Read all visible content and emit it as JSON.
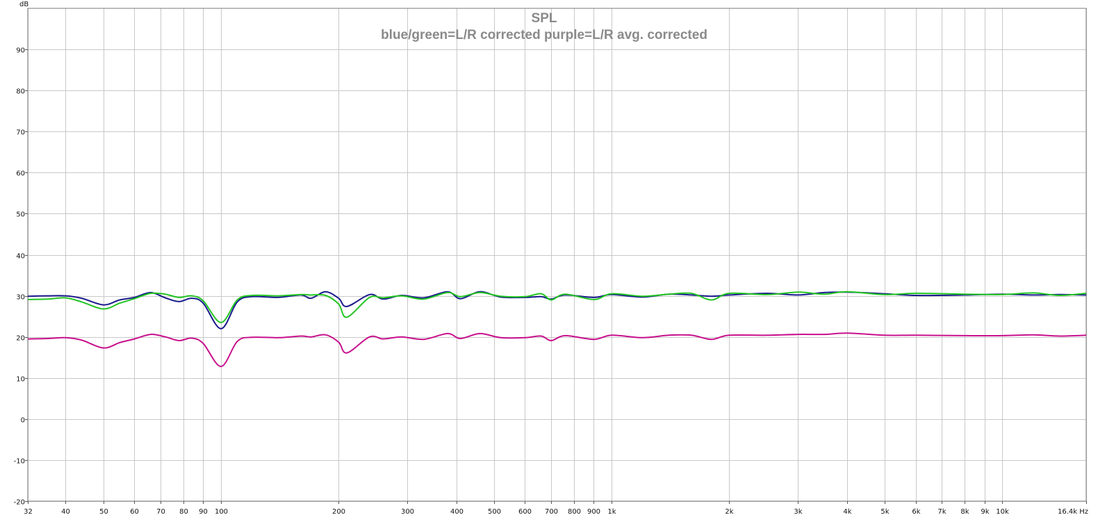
{
  "chart_data": {
    "type": "line",
    "title": "SPL",
    "subtitle": "blue/green=L/R corrected  purple=L/R avg. corrected",
    "ylabel": "dB",
    "xunit": "Hz",
    "xscale": "log",
    "xlim": [
      32,
      16400
    ],
    "ylim": [
      -20,
      100
    ],
    "grid": true,
    "x_ticks": [
      {
        "v": 32,
        "label": "32"
      },
      {
        "v": 40,
        "label": "40"
      },
      {
        "v": 50,
        "label": "50"
      },
      {
        "v": 60,
        "label": "60"
      },
      {
        "v": 70,
        "label": "70"
      },
      {
        "v": 80,
        "label": "80"
      },
      {
        "v": 90,
        "label": "90"
      },
      {
        "v": 100,
        "label": "100"
      },
      {
        "v": 200,
        "label": "200"
      },
      {
        "v": 300,
        "label": "300"
      },
      {
        "v": 400,
        "label": "400"
      },
      {
        "v": 500,
        "label": "500"
      },
      {
        "v": 600,
        "label": "600"
      },
      {
        "v": 700,
        "label": "700"
      },
      {
        "v": 800,
        "label": "800"
      },
      {
        "v": 900,
        "label": "900"
      },
      {
        "v": 1000,
        "label": "1k"
      },
      {
        "v": 2000,
        "label": "2k"
      },
      {
        "v": 3000,
        "label": "3k"
      },
      {
        "v": 4000,
        "label": "4k"
      },
      {
        "v": 5000,
        "label": "5k"
      },
      {
        "v": 6000,
        "label": "6k"
      },
      {
        "v": 7000,
        "label": "7k"
      },
      {
        "v": 8000,
        "label": "8k"
      },
      {
        "v": 9000,
        "label": "9k"
      },
      {
        "v": 10000,
        "label": "10k"
      },
      {
        "v": 16400,
        "label": "16.4k Hz"
      }
    ],
    "y_ticks": [
      {
        "v": 90,
        "label": "90"
      },
      {
        "v": 80,
        "label": "80"
      },
      {
        "v": 70,
        "label": "70"
      },
      {
        "v": 60,
        "label": "60"
      },
      {
        "v": 50,
        "label": "50"
      },
      {
        "v": 40,
        "label": "40"
      },
      {
        "v": 30,
        "label": "30"
      },
      {
        "v": 20,
        "label": "20"
      },
      {
        "v": 10,
        "label": "10"
      },
      {
        "v": 0,
        "label": "0"
      },
      {
        "v": -10,
        "label": "-10"
      },
      {
        "v": -20,
        "label": "-20"
      }
    ],
    "series": [
      {
        "color": "#1a1a8c",
        "x": [
          32,
          36,
          40,
          44,
          50,
          55,
          60,
          66,
          72,
          78,
          84,
          90,
          100,
          110,
          120,
          140,
          160,
          170,
          185,
          200,
          210,
          240,
          260,
          290,
          330,
          380,
          410,
          460,
          520,
          600,
          660,
          700,
          760,
          900,
          1000,
          1200,
          1400,
          1600,
          1800,
          2000,
          2500,
          3000,
          3500,
          4000,
          5000,
          6000,
          8000,
          10000,
          12000,
          14000,
          16400
        ],
        "y": [
          29.9,
          30.0,
          30.0,
          29.4,
          27.8,
          29.0,
          29.6,
          30.8,
          29.5,
          28.6,
          29.4,
          28.2,
          22.0,
          28.5,
          29.8,
          29.6,
          30.2,
          29.4,
          31.0,
          29.4,
          27.4,
          30.3,
          29.2,
          30.1,
          29.5,
          31.0,
          29.3,
          31.0,
          29.7,
          29.6,
          29.8,
          29.2,
          30.2,
          29.6,
          30.3,
          29.7,
          30.4,
          30.2,
          29.9,
          30.2,
          30.6,
          30.2,
          30.8,
          30.9,
          30.5,
          30.1,
          30.2,
          30.4,
          30.2,
          30.3,
          30.2
        ]
      },
      {
        "color": "#22c422",
        "x": [
          32,
          36,
          40,
          44,
          50,
          55,
          60,
          66,
          72,
          78,
          84,
          90,
          100,
          110,
          120,
          140,
          160,
          170,
          185,
          200,
          210,
          240,
          260,
          290,
          330,
          380,
          410,
          460,
          520,
          600,
          660,
          700,
          760,
          900,
          1000,
          1200,
          1400,
          1600,
          1800,
          2000,
          2500,
          3000,
          3500,
          4000,
          5000,
          6000,
          8000,
          10000,
          12000,
          14000,
          16400
        ],
        "y": [
          29.1,
          29.2,
          29.5,
          28.5,
          26.8,
          28.2,
          29.3,
          30.6,
          30.4,
          29.6,
          30.0,
          28.8,
          23.5,
          29.0,
          30.1,
          30.0,
          30.3,
          30.2,
          30.1,
          28.0,
          24.8,
          29.6,
          29.5,
          30.0,
          29.2,
          30.8,
          29.8,
          30.8,
          29.9,
          29.8,
          30.5,
          29.0,
          30.4,
          29.1,
          30.5,
          29.9,
          30.4,
          30.6,
          29.0,
          30.6,
          30.3,
          30.9,
          30.4,
          31.0,
          30.3,
          30.6,
          30.4,
          30.3,
          30.7,
          30.1,
          30.6
        ]
      },
      {
        "color": "#c8108c",
        "x": [
          32,
          36,
          40,
          44,
          50,
          55,
          60,
          66,
          72,
          78,
          84,
          90,
          100,
          110,
          120,
          140,
          160,
          170,
          185,
          200,
          210,
          240,
          260,
          290,
          330,
          380,
          410,
          460,
          520,
          600,
          660,
          700,
          760,
          900,
          1000,
          1200,
          1400,
          1600,
          1800,
          2000,
          2500,
          3000,
          3500,
          4000,
          5000,
          6000,
          8000,
          10000,
          12000,
          14000,
          16400
        ],
        "y": [
          19.5,
          19.6,
          19.8,
          19.2,
          17.3,
          18.6,
          19.5,
          20.6,
          20.0,
          19.1,
          19.7,
          18.4,
          12.8,
          18.9,
          19.9,
          19.8,
          20.2,
          20.0,
          20.5,
          18.7,
          16.1,
          20.0,
          19.5,
          20.0,
          19.4,
          20.8,
          19.6,
          20.8,
          19.8,
          19.8,
          20.2,
          19.1,
          20.3,
          19.4,
          20.4,
          19.8,
          20.4,
          20.4,
          19.4,
          20.4,
          20.4,
          20.6,
          20.6,
          20.9,
          20.4,
          20.4,
          20.3,
          20.3,
          20.5,
          20.2,
          20.4
        ]
      }
    ]
  }
}
